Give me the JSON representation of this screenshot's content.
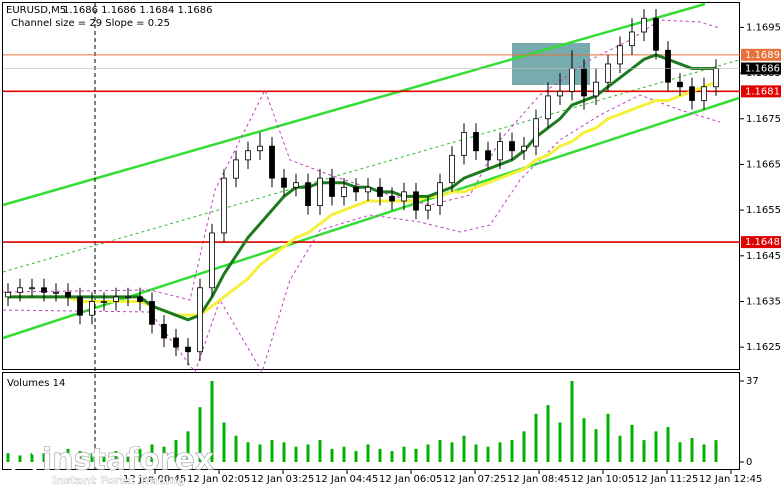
{
  "chart_data": {
    "type": "candlestick",
    "title": "EURUSD,M5",
    "quote": "1.1686 1.1686 1.1684 1.1686",
    "subtitle": "Channel size = 29 Slope = 0.25",
    "ylim": [
      1.162,
      1.1701
    ],
    "yticks": [
      1.1695,
      1.1685,
      1.1675,
      1.1665,
      1.1655,
      1.1645,
      1.1635,
      1.1625
    ],
    "open": [
      1.1636,
      1.1637,
      1.1638,
      1.1638,
      1.1637,
      1.1637,
      1.1636,
      1.1632,
      1.1635,
      1.1635,
      1.1636,
      1.1636,
      1.1635,
      1.163,
      1.1627,
      1.1625,
      1.1624,
      1.1638,
      1.165,
      1.1662,
      1.1666,
      1.1668,
      1.1669,
      1.1662,
      1.166,
      1.1661,
      1.1656,
      1.1662,
      1.1658,
      1.166,
      1.1659,
      1.166,
      1.1658,
      1.1657,
      1.1659,
      1.1655,
      1.1656,
      1.1661,
      1.1667,
      1.1672,
      1.1668,
      1.1666,
      1.167,
      1.1668,
      1.1669,
      1.1675,
      1.168,
      1.1681,
      1.1686,
      1.168,
      1.1683,
      1.1687,
      1.1691,
      1.1694,
      1.1697,
      1.169,
      1.1683,
      1.1682,
      1.1679,
      1.1682
    ],
    "high": [
      1.1639,
      1.164,
      1.164,
      1.164,
      1.1639,
      1.1639,
      1.1638,
      1.1637,
      1.1637,
      1.1638,
      1.1638,
      1.1638,
      1.1637,
      1.1632,
      1.1629,
      1.1627,
      1.164,
      1.1652,
      1.1664,
      1.1668,
      1.167,
      1.1672,
      1.1671,
      1.1664,
      1.1663,
      1.1663,
      1.1664,
      1.1664,
      1.1662,
      1.1662,
      1.1662,
      1.1662,
      1.166,
      1.1661,
      1.1661,
      1.1658,
      1.1663,
      1.1669,
      1.1674,
      1.1674,
      1.167,
      1.1672,
      1.1672,
      1.1671,
      1.1677,
      1.1683,
      1.1685,
      1.169,
      1.1688,
      1.1686,
      1.1689,
      1.1693,
      1.1697,
      1.1699,
      1.1699,
      1.1692,
      1.1685,
      1.1684,
      1.1684,
      1.1688
    ],
    "low": [
      1.1634,
      1.1635,
      1.1636,
      1.1635,
      1.1635,
      1.1634,
      1.163,
      1.163,
      1.1633,
      1.1633,
      1.1634,
      1.1633,
      1.1628,
      1.1625,
      1.1623,
      1.1621,
      1.1622,
      1.1636,
      1.1648,
      1.166,
      1.1664,
      1.1666,
      1.166,
      1.1658,
      1.1658,
      1.1654,
      1.1654,
      1.1656,
      1.1656,
      1.1657,
      1.1657,
      1.1656,
      1.1655,
      1.1655,
      1.1653,
      1.1653,
      1.1654,
      1.1659,
      1.1665,
      1.1666,
      1.1664,
      1.1664,
      1.1666,
      1.1666,
      1.1667,
      1.1673,
      1.1678,
      1.1679,
      1.1677,
      1.1678,
      1.1681,
      1.1685,
      1.1689,
      1.1692,
      1.1688,
      1.1681,
      1.168,
      1.1677,
      1.1677,
      1.168
    ],
    "close": [
      1.1637,
      1.1638,
      1.1638,
      1.1637,
      1.1637,
      1.1636,
      1.1632,
      1.1635,
      1.1635,
      1.1636,
      1.1636,
      1.1635,
      1.163,
      1.1627,
      1.1625,
      1.1624,
      1.1638,
      1.165,
      1.1662,
      1.1666,
      1.1668,
      1.1669,
      1.1662,
      1.166,
      1.1661,
      1.1656,
      1.1662,
      1.1658,
      1.166,
      1.1659,
      1.166,
      1.1658,
      1.1657,
      1.1659,
      1.1655,
      1.1656,
      1.1661,
      1.1667,
      1.1672,
      1.1668,
      1.1666,
      1.167,
      1.1668,
      1.1669,
      1.1675,
      1.168,
      1.1681,
      1.1686,
      1.168,
      1.1683,
      1.1687,
      1.1691,
      1.1694,
      1.1697,
      1.169,
      1.1683,
      1.1682,
      1.1679,
      1.1682,
      1.1686
    ],
    "moving_averages": [
      {
        "color": "#f5f03a",
        "values": [
          1.1636,
          1.1636,
          1.1636,
          1.1636,
          1.1636,
          1.1636,
          1.1635,
          1.1635,
          1.1635,
          1.1635,
          1.1635,
          1.1635,
          1.1634,
          1.1633,
          1.1632,
          1.1632,
          1.1632,
          1.1634,
          1.1636,
          1.1638,
          1.164,
          1.1643,
          1.1645,
          1.1647,
          1.1649,
          1.165,
          1.1652,
          1.1654,
          1.1655,
          1.1656,
          1.1657,
          1.1657,
          1.1657,
          1.1657,
          1.1657,
          1.1658,
          1.1658,
          1.1659,
          1.1659,
          1.166,
          1.1661,
          1.1662,
          1.1663,
          1.1664,
          1.1666,
          1.1667,
          1.1669,
          1.167,
          1.1672,
          1.1673,
          1.1675,
          1.1676,
          1.1677,
          1.1678,
          1.1679,
          1.1679,
          1.168,
          1.1681,
          1.1682,
          1.1683
        ]
      },
      {
        "color": "#1e7a1e",
        "values": [
          1.1636,
          1.1636,
          1.1636,
          1.1636,
          1.1636,
          1.1636,
          1.1636,
          1.1636,
          1.1636,
          1.1636,
          1.1636,
          1.1636,
          1.1634,
          1.1633,
          1.1632,
          1.1631,
          1.1632,
          1.1636,
          1.1641,
          1.1645,
          1.1649,
          1.1652,
          1.1655,
          1.1658,
          1.166,
          1.166,
          1.1661,
          1.1661,
          1.1661,
          1.166,
          1.166,
          1.1659,
          1.1659,
          1.1658,
          1.1658,
          1.1658,
          1.1659,
          1.166,
          1.1662,
          1.1663,
          1.1664,
          1.1665,
          1.1666,
          1.1668,
          1.1671,
          1.1673,
          1.1675,
          1.1678,
          1.1679,
          1.168,
          1.1682,
          1.1684,
          1.1686,
          1.1688,
          1.1689,
          1.1688,
          1.1687,
          1.1686,
          1.1686,
          1.1686
        ]
      }
    ],
    "levels": [
      {
        "value": 1.1689,
        "color": "#e8703a"
      },
      {
        "value": 1.1681,
        "color": "#e00000"
      },
      {
        "value": 1.1648,
        "color": "#e00000"
      }
    ],
    "current_price": 1.1686,
    "volume_title": "Volumes 14",
    "volume_color": "#00b000",
    "volume_lim": [
      0,
      37
    ],
    "volume_ticks": [
      37,
      0
    ],
    "volumes": [
      4,
      3,
      5,
      4,
      3,
      6,
      5,
      4,
      3,
      5,
      4,
      6,
      8,
      7,
      10,
      14,
      25,
      37,
      18,
      12,
      9,
      8,
      10,
      9,
      7,
      8,
      10,
      6,
      7,
      5,
      8,
      6,
      5,
      7,
      6,
      8,
      10,
      9,
      12,
      8,
      7,
      9,
      10,
      14,
      22,
      26,
      18,
      37,
      20,
      15,
      22,
      12,
      17,
      10,
      14,
      16,
      9,
      11,
      8,
      10
    ],
    "x_labels": [
      "12 Jan 00:45",
      "12 Jan 02:05",
      "12 Jan 03:25",
      "12 Jan 04:45",
      "12 Jan 06:05",
      "12 Jan 07:25",
      "12 Jan 08:45",
      "12 Jan 10:05",
      "12 Jan 11:25",
      "12 Jan 12:45"
    ],
    "watermark": "instaforex",
    "watermark_tagline": "Instant Forex Trading"
  }
}
